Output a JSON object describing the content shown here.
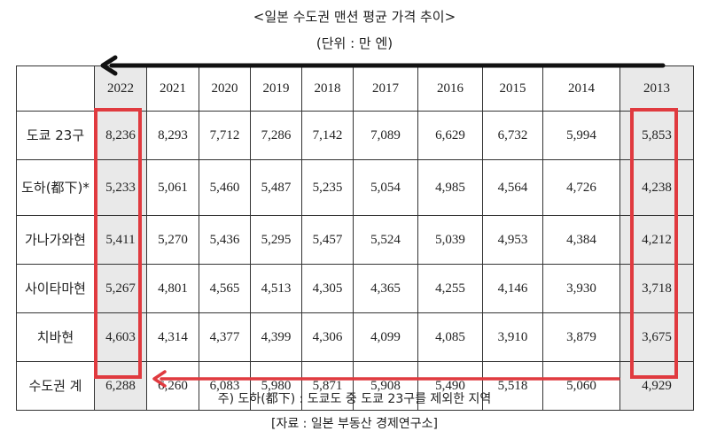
{
  "title": "<일본 수도권 맨션 평균 가격 추이>",
  "unit": "(단위 : 만 엔)",
  "table": {
    "corner": "",
    "years": [
      "2022",
      "2021",
      "2020",
      "2019",
      "2018",
      "2017",
      "2016",
      "2015",
      "2014",
      "2013"
    ],
    "rows": [
      {
        "label": "도쿄 23구",
        "values": [
          "8,236",
          "8,293",
          "7,712",
          "7,286",
          "7,142",
          "7,089",
          "6,629",
          "6,732",
          "5,994",
          "5,853"
        ]
      },
      {
        "label": "도하(都下)*",
        "values": [
          "5,233",
          "5,061",
          "5,460",
          "5,487",
          "5,235",
          "5,054",
          "4,985",
          "4,564",
          "4,726",
          "4,238"
        ]
      },
      {
        "label": "가나가와현",
        "values": [
          "5,411",
          "5,270",
          "5,436",
          "5,295",
          "5,457",
          "5,524",
          "5,039",
          "4,953",
          "4,384",
          "4,212"
        ]
      },
      {
        "label": "사이타마현",
        "values": [
          "5,267",
          "4,801",
          "4,565",
          "4,513",
          "4,305",
          "4,365",
          "4,255",
          "4,146",
          "3,930",
          "3,718"
        ]
      },
      {
        "label": "치바현",
        "values": [
          "4,603",
          "4,314",
          "4,377",
          "4,399",
          "4,306",
          "4,099",
          "4,085",
          "3,910",
          "3,879",
          "3,675"
        ]
      },
      {
        "label": "수도권 계",
        "values": [
          "6,288",
          "6,260",
          "6,083",
          "5,980",
          "5,871",
          "5,908",
          "5,490",
          "5,518",
          "5,060",
          "4,929"
        ]
      }
    ]
  },
  "highlight_color": "#e03a3f",
  "arrow_colors": {
    "top": "#111111",
    "bottom": "#e03a3f"
  },
  "note": "주) 도하(都下) : 도쿄도 중 도쿄 23구를 제외한 지역",
  "source": "[자료 : 일본 부동산 경제연구소]"
}
